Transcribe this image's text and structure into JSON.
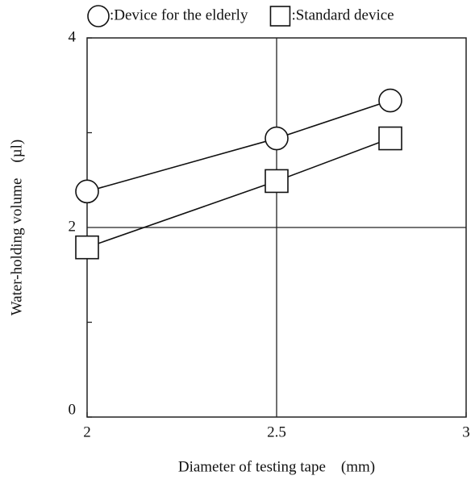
{
  "chart_data": {
    "type": "line",
    "xlabel": "Diameter of testing tape　(mm)",
    "ylabel": "Water-holding volume　(µl)",
    "xlim": [
      2,
      3
    ],
    "xticks": [
      2,
      2.5,
      3
    ],
    "ylim": [
      0,
      4
    ],
    "yticks": [
      0,
      2,
      4
    ],
    "yminor": [
      1,
      3
    ],
    "grid": true,
    "legend": "top",
    "x": [
      2,
      2.5,
      2.8
    ],
    "series": [
      {
        "name": ":Device for the elderly",
        "color": "#111111",
        "marker": "circle",
        "values": [
          2.38,
          2.94,
          3.34
        ]
      },
      {
        "name": ":Standard device",
        "color": "#111111",
        "marker": "square",
        "values": [
          1.79,
          2.49,
          2.94
        ]
      }
    ]
  }
}
